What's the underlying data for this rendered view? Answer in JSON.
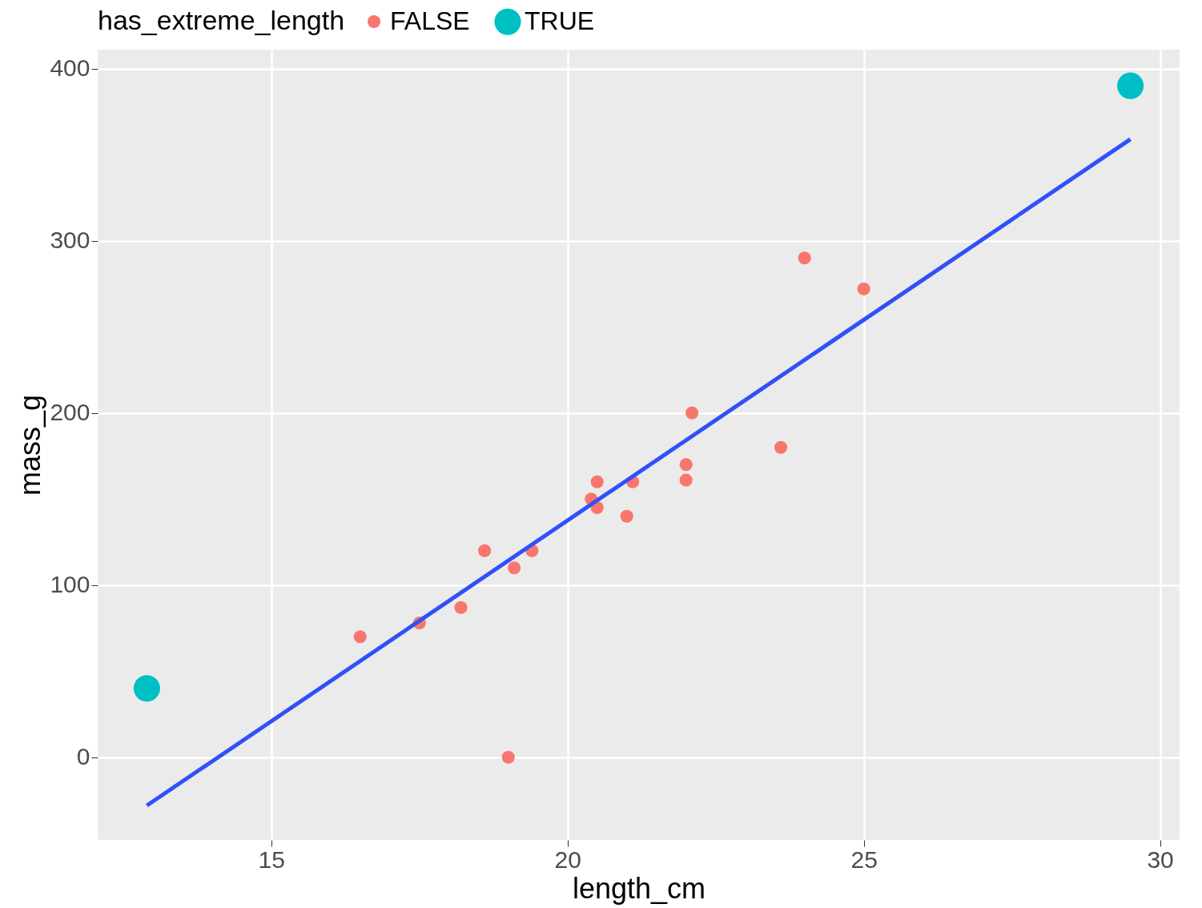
{
  "chart_data": {
    "type": "scatter",
    "xlabel": "length_cm",
    "ylabel": "mass_g",
    "legend_title": "has_extreme_length",
    "legend": "top",
    "grid": true,
    "xlim": [
      12.07,
      30.33
    ],
    "ylim": [
      -48,
      411
    ],
    "xticks": [
      15,
      20,
      25,
      30
    ],
    "yticks": [
      0,
      100,
      200,
      300,
      400
    ],
    "series": [
      {
        "name": "FALSE",
        "color": "#f8766d",
        "marker": "circle",
        "x": [
          16.5,
          17.5,
          18.2,
          18.6,
          19.1,
          19.4,
          19.0,
          20.4,
          20.5,
          20.5,
          21.0,
          21.1,
          22.0,
          22.0,
          22.1,
          23.6,
          24.0,
          25.0
        ],
        "values": [
          70,
          78,
          87,
          120,
          110,
          120,
          0,
          150,
          160,
          145,
          140,
          160,
          170,
          161,
          200,
          180,
          290,
          272
        ]
      },
      {
        "name": "TRUE",
        "color": "#00bfc4",
        "marker": "circle",
        "x": [
          12.9,
          29.5
        ],
        "values": [
          40,
          390
        ]
      },
      {
        "type": "line",
        "color": "#3050f8",
        "x": [
          12.9,
          29.5
        ],
        "values": [
          -28,
          359
        ]
      }
    ]
  }
}
